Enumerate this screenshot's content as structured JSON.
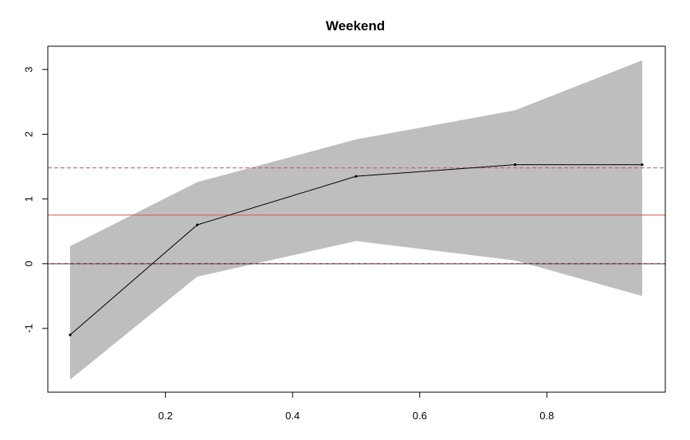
{
  "chart_data": {
    "type": "line",
    "title": "Weekend",
    "xlabel": "",
    "ylabel": "",
    "xlim": [
      0.05,
      0.95
    ],
    "ylim": [
      -1.8,
      3.15
    ],
    "x_ticks": [
      0.2,
      0.4,
      0.6,
      0.8
    ],
    "x_tick_labels": [
      "0.2",
      "0.4",
      "0.6",
      "0.8"
    ],
    "y_ticks": [
      -1,
      0,
      1,
      2,
      3
    ],
    "y_tick_labels": [
      "-1",
      "0",
      "1",
      "2",
      "3"
    ],
    "grid": false,
    "series": [
      {
        "x": [
          0.05,
          0.25,
          0.5,
          0.75,
          0.95
        ],
        "values": [
          -1.1,
          0.6,
          1.35,
          1.53,
          1.53
        ]
      }
    ],
    "band": {
      "x": [
        0.05,
        0.25,
        0.5,
        0.75,
        0.95
      ],
      "upper": [
        0.27,
        1.26,
        1.92,
        2.37,
        3.14
      ],
      "lower": [
        -1.79,
        -0.2,
        0.35,
        0.05,
        -0.5
      ],
      "color": "#BEBEBE"
    },
    "reference_lines": [
      {
        "y": 0,
        "style": "solid",
        "color": "#000000"
      },
      {
        "y": 0,
        "style": "dashed",
        "color": "#C05070"
      },
      {
        "y": 0.75,
        "style": "solid",
        "color": "#D9534F"
      },
      {
        "y": 1.48,
        "style": "dashed",
        "color": "#C05070"
      }
    ],
    "colors": {
      "line": "#000000",
      "band": "#BEBEBE",
      "axis": "#000000"
    }
  }
}
